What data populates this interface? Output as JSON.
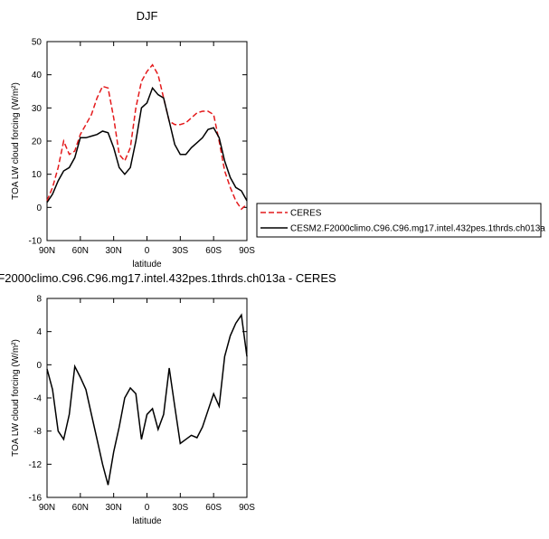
{
  "chart_data": [
    {
      "type": "line",
      "title": "DJF",
      "xlabel": "latitude",
      "ylabel": "TOA LW cloud forcing (W/m²)",
      "x": [
        90,
        85,
        80,
        75,
        70,
        65,
        60,
        55,
        50,
        45,
        40,
        35,
        30,
        25,
        20,
        15,
        10,
        5,
        0,
        -5,
        -10,
        -15,
        -20,
        -25,
        -30,
        -35,
        -40,
        -45,
        -50,
        -55,
        -60,
        -65,
        -70,
        -75,
        -80,
        -85,
        -90
      ],
      "xlim": [
        90,
        -90
      ],
      "xticks": [
        {
          "value": 90,
          "label": "90N"
        },
        {
          "value": 60,
          "label": "60N"
        },
        {
          "value": 30,
          "label": "30N"
        },
        0,
        {
          "value": -30,
          "label": "30S"
        },
        {
          "value": -60,
          "label": "60S"
        },
        {
          "value": -90,
          "label": "90S"
        }
      ],
      "ylim": [
        -10,
        50
      ],
      "yticks": [
        -10,
        0,
        10,
        20,
        30,
        40,
        50
      ],
      "legend": "right",
      "series": [
        {
          "name": "CERES",
          "color": "#e41a1c",
          "dashed": true,
          "values": [
            2,
            6,
            12,
            20,
            16,
            17,
            22,
            25,
            28,
            33,
            36.5,
            36,
            27,
            16,
            14,
            18,
            30,
            38,
            41,
            43,
            40,
            33,
            26,
            25,
            25,
            25.5,
            27,
            28.5,
            29,
            29,
            28,
            20,
            11,
            6,
            2,
            -0.5,
            1
          ]
        },
        {
          "name": "CESM2.F2000climo.C96.C96.mg17.intel.432pes.1thrds.ch013a",
          "color": "#000000",
          "dashed": false,
          "values": [
            1.5,
            4,
            8,
            11,
            12,
            15,
            21,
            21,
            21.5,
            22,
            23,
            22.5,
            18,
            12,
            10,
            12,
            20,
            30,
            31.5,
            36,
            34,
            33,
            26,
            19,
            16,
            16,
            18,
            19.5,
            21,
            23.5,
            24,
            21,
            14,
            9,
            6,
            5,
            2
          ]
        }
      ]
    },
    {
      "type": "line",
      "title": "F2000climo.C96.C96.mg17.intel.432pes.1thrds.ch013a - CERES",
      "xlabel": "latitude",
      "ylabel": "TOA LW cloud forcing (W/m²)",
      "x": [
        90,
        85,
        80,
        75,
        70,
        65,
        60,
        55,
        50,
        45,
        40,
        35,
        30,
        25,
        20,
        15,
        10,
        5,
        0,
        -5,
        -10,
        -15,
        -20,
        -25,
        -30,
        -35,
        -40,
        -45,
        -50,
        -55,
        -60,
        -65,
        -70,
        -75,
        -80,
        -85,
        -90
      ],
      "xlim": [
        90,
        -90
      ],
      "xticks": [
        {
          "value": 90,
          "label": "90N"
        },
        {
          "value": 60,
          "label": "60N"
        },
        {
          "value": 30,
          "label": "30N"
        },
        0,
        {
          "value": -30,
          "label": "30S"
        },
        {
          "value": -60,
          "label": "60S"
        },
        {
          "value": -90,
          "label": "90S"
        }
      ],
      "ylim": [
        -16,
        8
      ],
      "yticks": [
        -16,
        -12,
        -8,
        -4,
        0,
        4,
        8
      ],
      "series": [
        {
          "color": "#000000",
          "dashed": false,
          "values": [
            -0.5,
            -3,
            -8,
            -9,
            -6,
            -0.2,
            -1.5,
            -3,
            -6,
            -9,
            -12,
            -14.5,
            -10.5,
            -7.5,
            -4,
            -2.8,
            -3.5,
            -9,
            -6,
            -5.3,
            -7.8,
            -6,
            -0.4,
            -5,
            -9.5,
            -9,
            -8.5,
            -8.8,
            -7.5,
            -5.5,
            -3.5,
            -5,
            1,
            3.5,
            5,
            6,
            1
          ]
        }
      ]
    }
  ]
}
